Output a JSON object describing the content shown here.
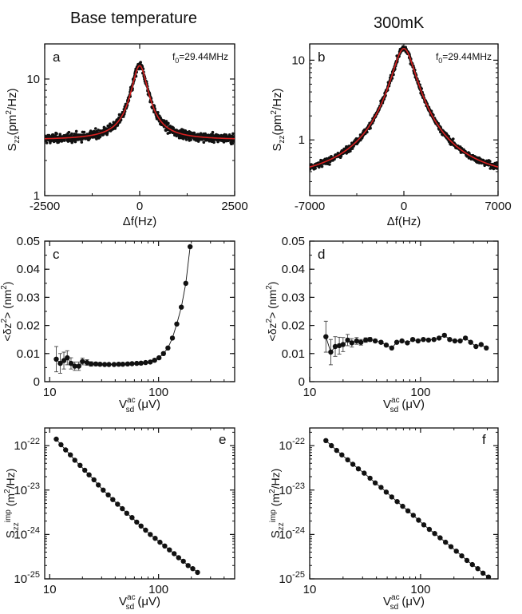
{
  "columns": {
    "left_title": "Base temperature",
    "right_title": "300mK"
  },
  "colors": {
    "data": "#111111",
    "fit": "#d62020",
    "axis": "#111111"
  },
  "chart_data": [
    {
      "id": "a",
      "panel_label": "a",
      "type": "scatter",
      "title": "",
      "annotation": "f0=29.44MHz",
      "xlabel": "Δf(Hz)",
      "ylabel": "Szz(pm²/Hz)",
      "xscale": "linear",
      "yscale": "log",
      "xlim": [
        -2500,
        2500
      ],
      "ylim": [
        1,
        20
      ],
      "xticks": [
        -2500,
        0,
        2500
      ],
      "xtick_labels": [
        "-2500",
        "0",
        "2500"
      ],
      "yticks": [
        1,
        10
      ],
      "ytick_labels": [
        "1",
        "10"
      ],
      "fit": {
        "type": "lorentzian",
        "center": 0,
        "peak": 13,
        "background": 3.0,
        "hwhm": 220,
        "color": "red"
      },
      "noise_scatter_fraction": 0.06,
      "legend": "none"
    },
    {
      "id": "b",
      "panel_label": "b",
      "type": "scatter",
      "title": "",
      "annotation": "f0=29.44MHz",
      "xlabel": "Δf(Hz)",
      "ylabel": "Szz(pm²/Hz)",
      "xscale": "linear",
      "yscale": "log",
      "xlim": [
        -7000,
        7000
      ],
      "ylim": [
        0.2,
        16
      ],
      "xticks": [
        -7000,
        0,
        7000
      ],
      "xtick_labels": [
        "-7000",
        "0",
        "7000"
      ],
      "yticks": [
        1,
        10
      ],
      "ytick_labels": [
        "1",
        "10"
      ],
      "fit": {
        "type": "lorentzian",
        "center": 0,
        "peak": 14,
        "background": 0.28,
        "hwhm": 800,
        "color": "red"
      },
      "noise_scatter_fraction": 0.06,
      "legend": "none"
    },
    {
      "id": "c",
      "panel_label": "c",
      "type": "line",
      "title": "",
      "xlabel": "Vsd ac (μV)",
      "ylabel": "<δz²> (nm²)",
      "xscale": "log",
      "yscale": "linear",
      "xlim": [
        9,
        500
      ],
      "ylim": [
        0,
        0.05
      ],
      "xticks": [
        10,
        100
      ],
      "xtick_labels": [
        "10",
        "100"
      ],
      "yticks": [
        0,
        0.01,
        0.02,
        0.03,
        0.04,
        0.05
      ],
      "ytick_labels": [
        "0",
        "0.01",
        "0.02",
        "0.03",
        "0.04",
        "0.05"
      ],
      "series": [
        {
          "name": "base",
          "x": [
            11.5,
            12.5,
            13.5,
            14.5,
            15.7,
            17,
            18.5,
            20,
            22,
            24,
            26.5,
            29,
            32,
            35,
            39,
            43,
            47,
            52,
            57,
            63,
            69,
            76,
            84,
            92,
            101,
            111,
            122,
            134,
            147,
            162,
            178,
            195
          ],
          "y": [
            0.008,
            0.0065,
            0.0075,
            0.0085,
            0.0065,
            0.0055,
            0.0055,
            0.0072,
            0.0068,
            0.0063,
            0.0063,
            0.0062,
            0.0061,
            0.0061,
            0.0061,
            0.0062,
            0.0062,
            0.0063,
            0.0064,
            0.0065,
            0.0066,
            0.0068,
            0.007,
            0.0076,
            0.0085,
            0.01,
            0.012,
            0.0155,
            0.0205,
            0.0265,
            0.035,
            0.048
          ],
          "yerr": [
            0.0045,
            0.0035,
            0.003,
            0.0025,
            0.002,
            0.0015,
            0.0015,
            0.0012,
            0.001,
            0.0008,
            0.0006,
            0.0005,
            0.0005,
            0.0004,
            0.0004,
            0.0004,
            0.0004,
            0.0004,
            0.0004,
            0.0004,
            0.0004,
            0.0004,
            0.0004,
            0.0004,
            0.0004,
            0.0004,
            0.0004,
            0.0004,
            0.0004,
            0.0004,
            0.0004,
            0.0004
          ]
        }
      ],
      "legend": "none"
    },
    {
      "id": "d",
      "panel_label": "d",
      "type": "line",
      "title": "",
      "xlabel": "Vsd ac (μV)",
      "ylabel": "<δz²> (nm²)",
      "xscale": "log",
      "yscale": "linear",
      "xlim": [
        10,
        500
      ],
      "ylim": [
        0,
        0.05
      ],
      "xticks": [
        10,
        100
      ],
      "xtick_labels": [
        "10",
        "100"
      ],
      "yticks": [
        0,
        0.01,
        0.02,
        0.03,
        0.04,
        0.05
      ],
      "ytick_labels": [
        "0",
        "0.01",
        "0.02",
        "0.03",
        "0.04",
        "0.05"
      ],
      "series": [
        {
          "name": "300mK",
          "x": [
            14,
            15.5,
            17,
            18.5,
            20,
            22,
            24,
            26.5,
            29,
            32,
            35,
            39,
            44,
            49,
            55,
            61,
            68,
            76,
            85,
            95,
            106,
            118,
            132,
            147,
            164,
            183,
            204,
            228,
            254,
            283,
            316,
            352,
            392
          ],
          "y": [
            0.016,
            0.0105,
            0.0125,
            0.0128,
            0.0132,
            0.0148,
            0.0138,
            0.0145,
            0.014,
            0.0148,
            0.015,
            0.0145,
            0.014,
            0.013,
            0.012,
            0.014,
            0.0145,
            0.0138,
            0.015,
            0.0145,
            0.015,
            0.0148,
            0.015,
            0.0155,
            0.0165,
            0.015,
            0.0145,
            0.0145,
            0.0155,
            0.014,
            0.0125,
            0.0132,
            0.012
          ],
          "yerr": [
            0.0055,
            0.0045,
            0.0035,
            0.003,
            0.0025,
            0.002,
            0.0015,
            0.0012,
            0.001,
            0.0008,
            0.0007,
            0.0006,
            0.0005,
            0.0005,
            0.0004,
            0.0004,
            0.0004,
            0.0004,
            0.0004,
            0.0004,
            0.0004,
            0.0004,
            0.0004,
            0.0004,
            0.0004,
            0.0004,
            0.0004,
            0.0004,
            0.0004,
            0.0004,
            0.0004,
            0.0004,
            0.0004
          ]
        }
      ],
      "legend": "none"
    },
    {
      "id": "e",
      "panel_label": "e",
      "type": "line",
      "title": "",
      "xlabel": "Vsd ac (μV)",
      "ylabel": "Szz imp (m²/Hz)",
      "xscale": "log",
      "yscale": "log",
      "xlim": [
        9,
        500
      ],
      "ylim": [
        1e-25,
        2.5e-22
      ],
      "xticks": [
        10,
        100
      ],
      "xtick_labels": [
        "10",
        "100"
      ],
      "yticks": [
        1e-25,
        1e-24,
        1e-23,
        1e-22
      ],
      "ytick_labels": [
        "10-25",
        "10-24",
        "10-23",
        "10-22"
      ],
      "series": [
        {
          "name": "base",
          "x": [
            11.5,
            12.7,
            14,
            15.5,
            17,
            19,
            21,
            23,
            25.5,
            28,
            31,
            34.5,
            38,
            42,
            46.5,
            51,
            57,
            63,
            69,
            76,
            84,
            93,
            103,
            114,
            126,
            139,
            153,
            169,
            187,
            206,
            228
          ],
          "y": [
            1.4e-22,
            1.05e-22,
            8e-23,
            6.2e-23,
            4.7e-23,
            3.6e-23,
            2.8e-23,
            2.2e-23,
            1.7e-23,
            1.3e-23,
            1e-23,
            7.8e-24,
            6.1e-24,
            4.8e-24,
            3.8e-24,
            3e-24,
            2.4e-24,
            1.9e-24,
            1.55e-24,
            1.25e-24,
            1e-24,
            8.2e-25,
            6.7e-25,
            5.5e-25,
            4.5e-25,
            3.7e-25,
            3e-25,
            2.5e-25,
            2e-25,
            1.7e-25,
            1.4e-25
          ]
        }
      ],
      "legend": "none"
    },
    {
      "id": "f",
      "panel_label": "f",
      "type": "line",
      "title": "",
      "xlabel": "Vsd ac (μV)",
      "ylabel": "Szz imp (m²/Hz)",
      "xscale": "log",
      "yscale": "log",
      "xlim": [
        10,
        500
      ],
      "ylim": [
        1e-25,
        2.5e-22
      ],
      "xticks": [
        10,
        100
      ],
      "xtick_labels": [
        "10",
        "100"
      ],
      "yticks": [
        1e-25,
        1e-24,
        1e-23,
        1e-22
      ],
      "ytick_labels": [
        "10-25",
        "10-24",
        "10-23",
        "10-22"
      ],
      "series": [
        {
          "name": "300mK",
          "x": [
            14,
            15.7,
            17.5,
            19.5,
            22,
            24.5,
            27.5,
            31,
            35,
            39,
            44,
            49,
            55,
            61.5,
            69,
            77,
            86,
            96,
            107,
            120,
            134,
            150,
            168,
            188,
            210,
            235,
            262,
            293,
            328,
            366,
            410
          ],
          "y": [
            1.3e-22,
            1e-22,
            7.8e-23,
            6.2e-23,
            4.8e-23,
            3.8e-23,
            3e-23,
            2.4e-23,
            1.85e-23,
            1.45e-23,
            1.15e-23,
            9e-24,
            7e-24,
            5.5e-24,
            4.3e-24,
            3.4e-24,
            2.7e-24,
            2.1e-24,
            1.65e-24,
            1.3e-24,
            1.05e-24,
            8.4e-25,
            6.7e-25,
            5.3e-25,
            4.2e-25,
            3.3e-25,
            2.6e-25,
            2.1e-25,
            1.7e-25,
            1.35e-25,
            1.1e-25
          ]
        }
      ],
      "legend": "none"
    }
  ]
}
